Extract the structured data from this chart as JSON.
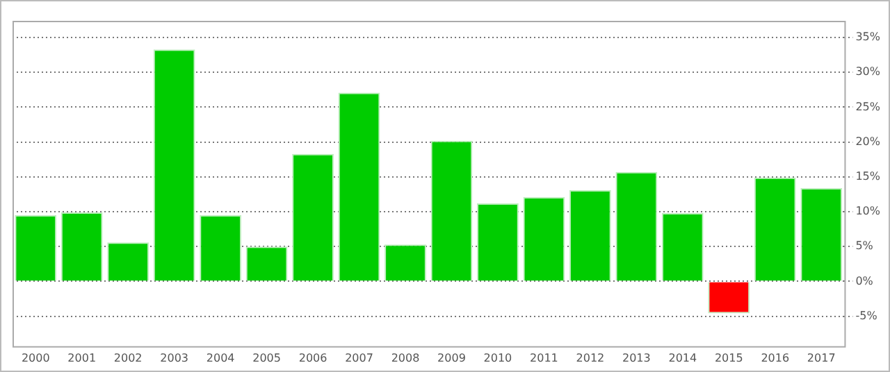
{
  "chart_data": {
    "type": "bar",
    "categories": [
      "2000",
      "2001",
      "2002",
      "2003",
      "2004",
      "2005",
      "2006",
      "2007",
      "2008",
      "2009",
      "2010",
      "2011",
      "2012",
      "2013",
      "2014",
      "2015",
      "2016",
      "2017"
    ],
    "values": [
      9.5,
      9.9,
      5.6,
      33.3,
      9.5,
      5.0,
      18.3,
      27.1,
      5.3,
      20.2,
      11.2,
      12.1,
      13.1,
      15.7,
      9.8,
      -4.6,
      14.9,
      13.4
    ],
    "colors": [
      "#00cc00",
      "#00cc00",
      "#00cc00",
      "#00cc00",
      "#00cc00",
      "#00cc00",
      "#00cc00",
      "#00cc00",
      "#00cc00",
      "#00cc00",
      "#00cc00",
      "#00cc00",
      "#00cc00",
      "#00cc00",
      "#00cc00",
      "#ff0000",
      "#00cc00",
      "#00cc00"
    ],
    "ylim": [
      -9.3,
      37.4
    ],
    "yticks": [
      {
        "value": -5,
        "label": "-5%"
      },
      {
        "value": 0,
        "label": "0%"
      },
      {
        "value": 5,
        "label": "5%"
      },
      {
        "value": 10,
        "label": "10%"
      },
      {
        "value": 15,
        "label": "15%"
      },
      {
        "value": 20,
        "label": "20%"
      },
      {
        "value": 25,
        "label": "25%"
      },
      {
        "value": 30,
        "label": "30%"
      },
      {
        "value": 35,
        "label": "35%"
      }
    ],
    "grid": "y"
  }
}
